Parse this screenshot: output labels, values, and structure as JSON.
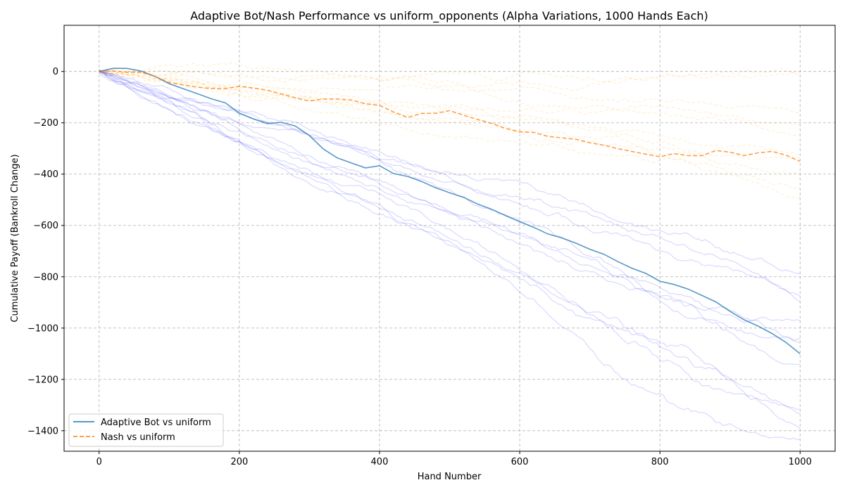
{
  "chart_data": {
    "type": "line",
    "title": "Adaptive Bot/Nash Performance vs  uniform_opponents (Alpha Variations, 1000 Hands Each)",
    "xlabel": "Hand Number",
    "ylabel": "Cumulative Payoff (Bankroll Change)",
    "xlim": [
      -50,
      1050
    ],
    "ylim": [
      -1480,
      180
    ],
    "x_ticks": [
      0,
      200,
      400,
      600,
      800,
      1000
    ],
    "y_ticks": [
      -1400,
      -1200,
      -1000,
      -800,
      -600,
      -400,
      -200,
      0
    ],
    "grid": true,
    "grid_style": "dashed",
    "legend_position": "lower-left",
    "legend": [
      "Adaptive Bot vs uniform",
      "Nash vs uniform"
    ],
    "series": [
      {
        "name": "Adaptive Bot vs uniform",
        "color": "#1f77b4",
        "style": "solid",
        "x": [
          0,
          20,
          40,
          60,
          80,
          100,
          120,
          140,
          160,
          180,
          200,
          220,
          240,
          260,
          280,
          300,
          320,
          340,
          360,
          380,
          400,
          420,
          440,
          460,
          480,
          500,
          520,
          540,
          560,
          580,
          600,
          620,
          640,
          660,
          680,
          700,
          720,
          740,
          760,
          780,
          800,
          820,
          840,
          860,
          880,
          900,
          920,
          940,
          960,
          980,
          1000
        ],
        "y": [
          0,
          10,
          15,
          0,
          -20,
          -45,
          -70,
          -85,
          -105,
          -125,
          -160,
          -185,
          -205,
          -195,
          -215,
          -250,
          -300,
          -340,
          -355,
          -375,
          -370,
          -395,
          -410,
          -430,
          -450,
          -475,
          -490,
          -515,
          -540,
          -560,
          -585,
          -610,
          -630,
          -650,
          -670,
          -690,
          -715,
          -740,
          -765,
          -790,
          -815,
          -830,
          -850,
          -870,
          -900,
          -935,
          -965,
          -995,
          -1020,
          -1055,
          -1100
        ]
      },
      {
        "name": "Nash vs uniform",
        "color": "#ff7f0e",
        "style": "dashed",
        "x": [
          0,
          20,
          40,
          60,
          80,
          100,
          120,
          140,
          160,
          180,
          200,
          220,
          240,
          260,
          280,
          300,
          320,
          340,
          360,
          380,
          400,
          420,
          440,
          460,
          480,
          500,
          520,
          540,
          560,
          580,
          600,
          620,
          640,
          660,
          680,
          700,
          720,
          740,
          760,
          780,
          800,
          820,
          840,
          860,
          880,
          900,
          920,
          940,
          960,
          980,
          1000
        ],
        "y": [
          0,
          0,
          0,
          -5,
          -20,
          -40,
          -55,
          -60,
          -65,
          -70,
          -55,
          -65,
          -75,
          -85,
          -105,
          -115,
          -105,
          -110,
          -110,
          -125,
          -135,
          -155,
          -180,
          -165,
          -160,
          -155,
          -170,
          -185,
          -205,
          -220,
          -235,
          -240,
          -250,
          -260,
          -265,
          -275,
          -290,
          -300,
          -310,
          -325,
          -330,
          -320,
          -330,
          -325,
          -310,
          -315,
          -325,
          -320,
          -310,
          -325,
          -350
        ]
      }
    ],
    "background_runs": {
      "blue_color": "#0000ff",
      "orange_color": "#ffa500",
      "blue_final_values": [
        -1400,
        -1380,
        -1330,
        -1290,
        -1140,
        -1060,
        -1000,
        -960,
        -900,
        -860,
        -790
      ],
      "orange_final_values": [
        -480,
        -440,
        -400,
        -350,
        -300,
        -250,
        -200,
        -150,
        -40,
        0
      ]
    }
  }
}
